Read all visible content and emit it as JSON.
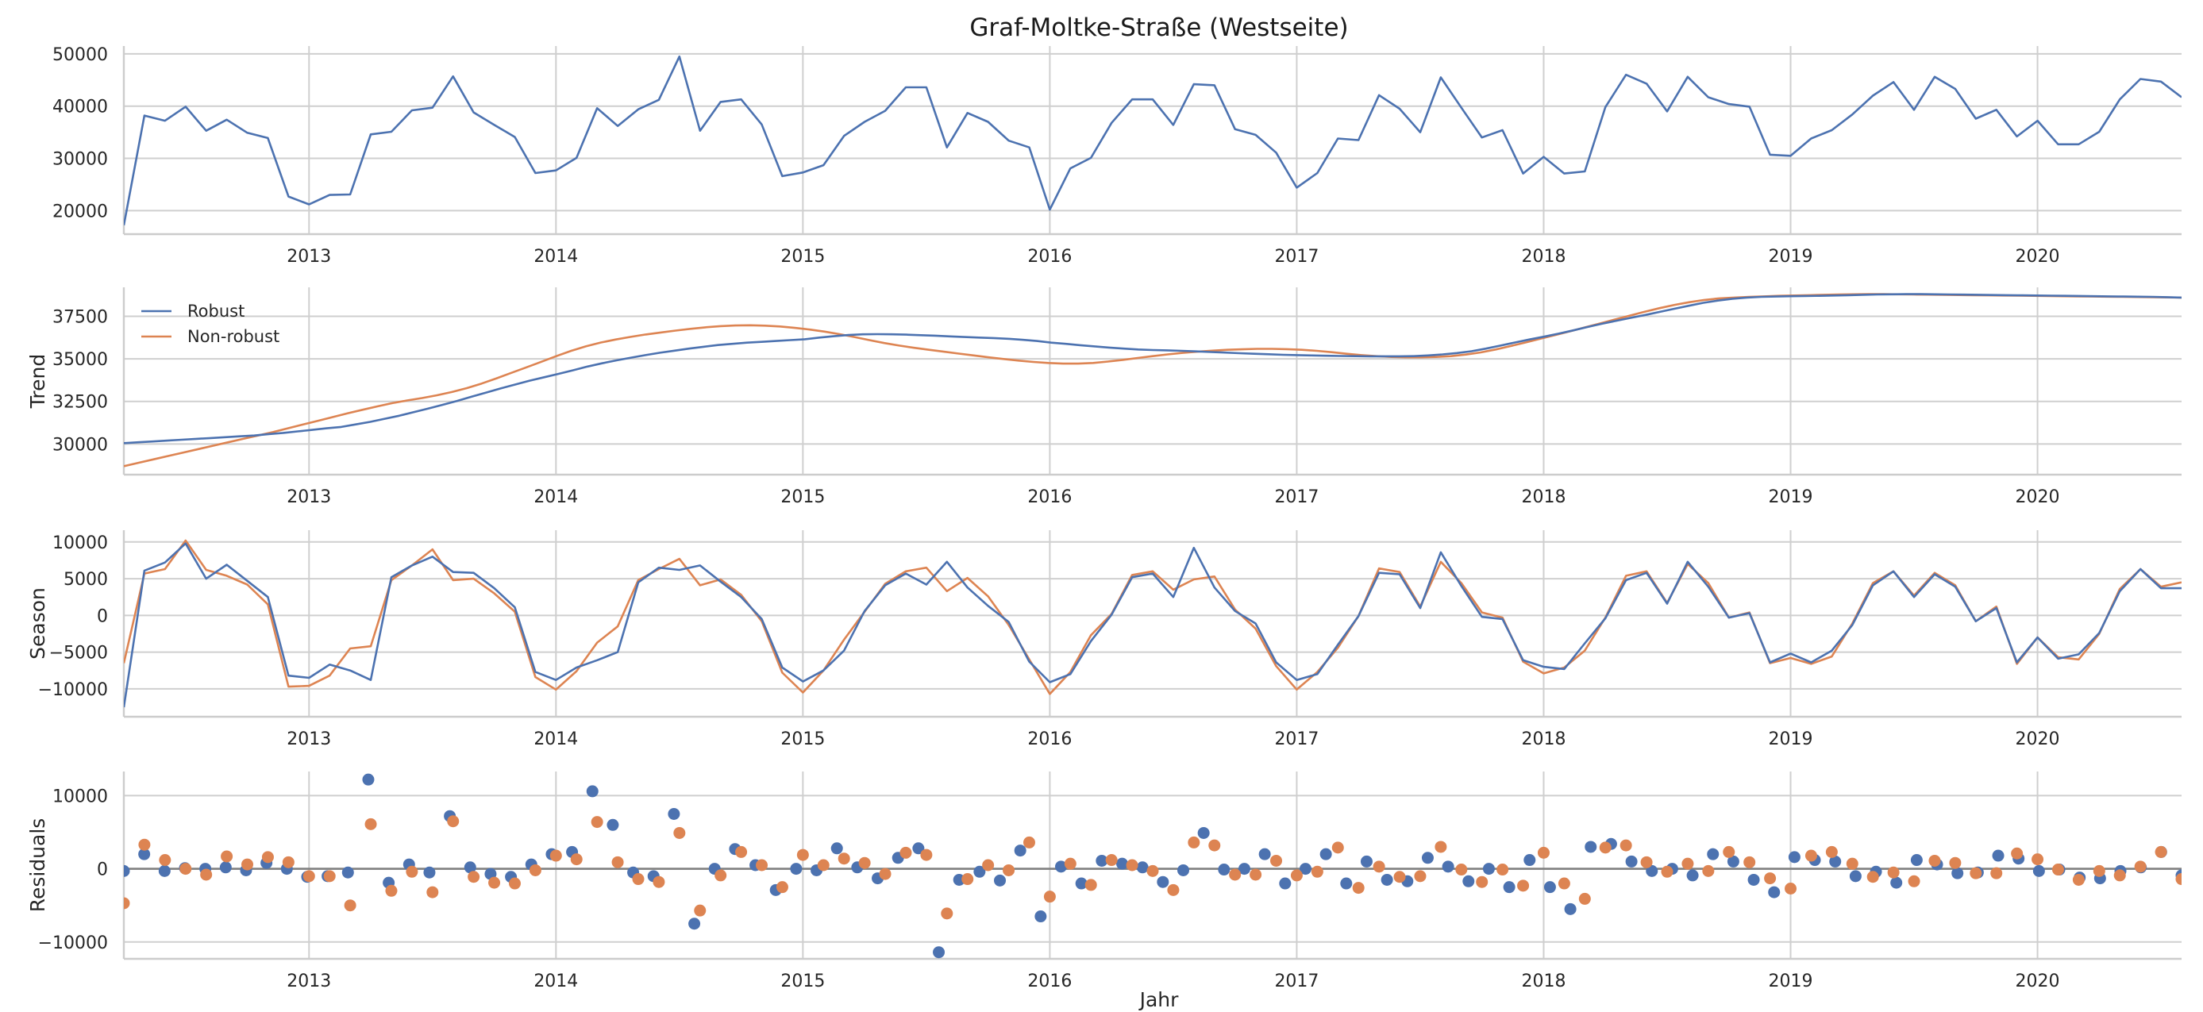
{
  "chart_data": {
    "type": "line",
    "title": "Graf-Moltke-Straße (Westseite)",
    "xlabel": "Jahr",
    "x_start": "2012-04",
    "x_range": [
      "2012-04",
      "2020-09"
    ],
    "year_ticks": [
      "2013",
      "2014",
      "2015",
      "2016",
      "2017",
      "2018",
      "2019",
      "2020"
    ],
    "colors": {
      "robust": "#4c72b0",
      "nonrobust": "#dd8452",
      "zero": "#808080"
    },
    "panels": [
      {
        "id": "observed",
        "type": "line",
        "ylabel": "",
        "ylim": [
          15500,
          51500
        ],
        "yticks": [
          20000,
          30000,
          40000,
          50000
        ],
        "ytick_labels": [
          "20000",
          "30000",
          "40000",
          "50000"
        ],
        "series": [
          {
            "color": "robust",
            "values": [
              17200,
              38200,
              37200,
              39900,
              35300,
              37400,
              34900,
              33900,
              22700,
              21200,
              23000,
              23100,
              34600,
              35100,
              39200,
              39700,
              45700,
              38800,
              36400,
              34100,
              27200,
              27700,
              30100,
              39600,
              36200,
              39400,
              41200,
              49500,
              35300,
              40800,
              41300,
              36500,
              26600,
              27300,
              28700,
              34300,
              37000,
              39100,
              43600,
              43600,
              32100,
              38700,
              37000,
              33400,
              32100,
              20200,
              28100,
              30100,
              36800,
              41300,
              41300,
              36400,
              44200,
              44000,
              35600,
              34500,
              31100,
              24400,
              27200,
              33800,
              33500,
              42100,
              39500,
              35000,
              45500,
              39700,
              34000,
              35400,
              27100,
              30300,
              27100,
              27500,
              39800,
              46000,
              44300,
              39000,
              45600,
              41700,
              40400,
              39900,
              30700,
              30500,
              33800,
              35400,
              38400,
              42000,
              44600,
              39300,
              45600,
              43300,
              37600,
              39300,
              34200,
              37200,
              32700,
              32700,
              35100,
              41300,
              45200,
              44700,
              41700
            ]
          }
        ]
      },
      {
        "id": "trend",
        "type": "line",
        "ylabel": "Trend",
        "ylim": [
          28200,
          39200
        ],
        "yticks": [
          30000,
          32500,
          35000,
          37500
        ],
        "ytick_labels": [
          "30000",
          "32500",
          "35000",
          "37500"
        ],
        "legend": {
          "position": "top-left",
          "entries": [
            {
              "name": "Robust",
              "color": "robust"
            },
            {
              "name": "Non-robust",
              "color": "nonrobust"
            }
          ]
        },
        "series": [
          {
            "name": "Robust",
            "color": "robust",
            "values": [
              30050,
              30100,
              30150,
              30200,
              30250,
              30300,
              30350,
              30400,
              30450,
              30500,
              30580,
              30650,
              30740,
              30830,
              30920,
              31000,
              31150,
              31300,
              31480,
              31660,
              31870,
              32080,
              32300,
              32530,
              32780,
              33020,
              33260,
              33490,
              33720,
              33920,
              34120,
              34330,
              34550,
              34740,
              34910,
              35070,
              35220,
              35360,
              35480,
              35600,
              35710,
              35810,
              35880,
              35950,
              36000,
              36050,
              36100,
              36150,
              36250,
              36330,
              36400,
              36440,
              36450,
              36440,
              36420,
              36390,
              36360,
              36320,
              36280,
              36250,
              36220,
              36180,
              36120,
              36050,
              35950,
              35880,
              35800,
              35730,
              35660,
              35600,
              35550,
              35520,
              35500,
              35470,
              35440,
              35400,
              35370,
              35330,
              35300,
              35270,
              35240,
              35220,
              35200,
              35180,
              35170,
              35160,
              35150,
              35150,
              35150,
              35160,
              35200,
              35260,
              35340,
              35450,
              35600,
              35780,
              35960,
              36140,
              36300,
              36480,
              36670,
              36870,
              37060,
              37240,
              37410,
              37580,
              37760,
              37940,
              38120,
              38290,
              38420,
              38530,
              38600,
              38640,
              38660,
              38680,
              38690,
              38700,
              38720,
              38740,
              38760,
              38780,
              38790,
              38800,
              38800,
              38790,
              38780,
              38770,
              38760,
              38750,
              38740,
              38730,
              38720,
              38710,
              38700,
              38690,
              38680,
              38670,
              38660,
              38650,
              38640,
              38620,
              38600
            ]
          },
          {
            "name": "Non-robust",
            "color": "nonrobust",
            "values": [
              28700,
              28900,
              29100,
              29300,
              29500,
              29700,
              29900,
              30100,
              30300,
              30500,
              30700,
              30920,
              31140,
              31360,
              31580,
              31800,
              32010,
              32210,
              32400,
              32560,
              32700,
              32860,
              33050,
              33280,
              33550,
              33860,
              34180,
              34500,
              34830,
              35160,
              35470,
              35740,
              35960,
              36140,
              36290,
              36430,
              36550,
              36660,
              36760,
              36850,
              36920,
              36960,
              36970,
              36950,
              36900,
              36820,
              36720,
              36600,
              36450,
              36280,
              36100,
              35930,
              35780,
              35650,
              35530,
              35420,
              35310,
              35200,
              35090,
              34990,
              34900,
              34820,
              34760,
              34720,
              34720,
              34760,
              34840,
              34940,
              35050,
              35160,
              35260,
              35350,
              35420,
              35480,
              35530,
              35560,
              35590,
              35590,
              35570,
              35530,
              35470,
              35390,
              35300,
              35220,
              35160,
              35110,
              35090,
              35090,
              35110,
              35160,
              35250,
              35380,
              35550,
              35750,
              35960,
              36180,
              36400,
              36620,
              36850,
              37080,
              37310,
              37540,
              37770,
              37980,
              38170,
              38330,
              38460,
              38550,
              38600,
              38640,
              38670,
              38700,
              38720,
              38740,
              38760,
              38780,
              38790,
              38800,
              38800,
              38790,
              38780,
              38770,
              38760,
              38750,
              38740,
              38730,
              38720,
              38710,
              38700,
              38690,
              38680,
              38670,
              38660,
              38650,
              38640,
              38630,
              38620,
              38610,
              38600
            ]
          }
        ]
      },
      {
        "id": "season",
        "type": "line",
        "ylabel": "Season",
        "ylim": [
          -13800,
          11600
        ],
        "yticks": [
          -10000,
          -5000,
          0,
          5000,
          10000
        ],
        "ytick_labels": [
          "−10000",
          "−5000",
          "0",
          "5000",
          "10000"
        ],
        "series": [
          {
            "name": "Robust",
            "color": "robust",
            "values": [
              -12500,
              6100,
              7200,
              9800,
              5000,
              6900,
              4700,
              2500,
              -8200,
              -8500,
              -6700,
              -7500,
              -8800,
              5200,
              6800,
              8000,
              5900,
              5800,
              3700,
              1100,
              -7700,
              -8800,
              -7100,
              -6100,
              -5000,
              4500,
              6500,
              6200,
              6800,
              4600,
              2500,
              -500,
              -7100,
              -9000,
              -7500,
              -4800,
              600,
              4100,
              5700,
              4200,
              7300,
              3800,
              1300,
              -900,
              -6300,
              -9100,
              -8000,
              -3500,
              100,
              5200,
              5700,
              2500,
              9200,
              3800,
              600,
              -1100,
              -6400,
              -8800,
              -8000,
              -4000,
              -100,
              5800,
              5600,
              1000,
              8600,
              4000,
              -200,
              -500,
              -6100,
              -7000,
              -7300,
              -3800,
              -400,
              4800,
              5800,
              1600,
              7300,
              3900,
              -300,
              300,
              -6400,
              -5200,
              -6400,
              -4800,
              -1300,
              4100,
              6000,
              2500,
              5600,
              3900,
              -800,
              1000,
              -6400,
              -3000,
              -5900,
              -5300,
              -2400,
              3300,
              6300,
              3700,
              3700
            ]
          },
          {
            "name": "Non-robust",
            "color": "nonrobust",
            "values": [
              -6500,
              5700,
              6300,
              10200,
              6200,
              5400,
              4200,
              1500,
              -9700,
              -9600,
              -8200,
              -4500,
              -4200,
              4800,
              6800,
              9000,
              4800,
              5000,
              3000,
              500,
              -8400,
              -10100,
              -7600,
              -3700,
              -1500,
              4800,
              6300,
              7700,
              4100,
              4900,
              2800,
              -800,
              -7800,
              -10500,
              -7500,
              -3300,
              500,
              4300,
              6000,
              6500,
              3300,
              5100,
              2600,
              -1300,
              -6000,
              -10700,
              -7700,
              -2700,
              200,
              5500,
              6000,
              3500,
              4900,
              5300,
              800,
              -1800,
              -6900,
              -10100,
              -7700,
              -4400,
              -100,
              6400,
              5900,
              1200,
              7300,
              4400,
              400,
              -300,
              -6300,
              -7900,
              -7100,
              -4800,
              -300,
              5400,
              6000,
              1700,
              7000,
              4400,
              -300,
              400,
              -6500,
              -5800,
              -6600,
              -5600,
              -1100,
              4400,
              6000,
              2700,
              5800,
              4100,
              -800,
              1200,
              -6600,
              -3000,
              -5700,
              -6000,
              -2500,
              3600,
              6300,
              3900,
              4500
            ]
          }
        ]
      },
      {
        "id": "residuals",
        "type": "scatter",
        "ylabel": "Residuals",
        "ylim": [
          -12300,
          13300
        ],
        "yticks": [
          -10000,
          0,
          10000
        ],
        "ytick_labels": [
          "−10000",
          "0",
          "10000"
        ],
        "zero_line": true,
        "series": [
          {
            "name": "Robust",
            "color": "robust",
            "values": [
              -300,
              2000,
              -300,
              100,
              0,
              200,
              -200,
              800,
              0,
              -1100,
              -1000,
              -500,
              12200,
              -1900,
              600,
              -500,
              7200,
              200,
              -700,
              -1100,
              600,
              2000,
              2300,
              10600,
              6000,
              -500,
              -1000,
              7500,
              -7500,
              0,
              2700,
              500,
              -2900,
              0,
              -200,
              2800,
              200,
              -1300,
              1500,
              2800,
              -11400,
              -1500,
              -400,
              -1600,
              2500,
              -6500,
              300,
              -2000,
              1100,
              700,
              200,
              -1800,
              -200,
              4900,
              -100,
              0,
              2000,
              -2000,
              0,
              2000,
              -2000,
              1000,
              -1500,
              -1700,
              1500,
              300,
              -1700,
              0,
              -2500,
              1200,
              -2500,
              -5500,
              3000,
              3400,
              1000,
              -300,
              0,
              -900,
              2000,
              1000,
              -1500,
              -3200,
              1600,
              1200,
              1000,
              -1000,
              -400,
              -1900,
              1200,
              600,
              -600,
              -500,
              1800,
              1400,
              -300,
              -100,
              -1200,
              -1300,
              -300,
              200,
              2300,
              -900
            ]
          },
          {
            "name": "Non-robust",
            "color": "nonrobust",
            "values": [
              -4700,
              3300,
              1200,
              0,
              -800,
              1700,
              600,
              1600,
              900,
              -1000,
              -1000,
              -5000,
              6100,
              -3000,
              -400,
              -3200,
              6500,
              -1100,
              -1900,
              -2000,
              -200,
              1800,
              1300,
              6400,
              900,
              -1400,
              -1800,
              4900,
              -5700,
              -900,
              2300,
              500,
              -2500,
              1900,
              500,
              1400,
              800,
              -700,
              2200,
              1900,
              -6100,
              -1400,
              500,
              -200,
              3600,
              -3800,
              700,
              -2200,
              1200,
              500,
              -300,
              -2900,
              3600,
              3200,
              -800,
              -800,
              1100,
              -900,
              -400,
              2900,
              -2600,
              300,
              -1100,
              -1000,
              3000,
              -100,
              -1800,
              -100,
              -2300,
              2200,
              -2000,
              -4100,
              2900,
              3200,
              900,
              -400,
              700,
              -300,
              2300,
              900,
              -1300,
              -2700,
              1800,
              2300,
              700,
              -1100,
              -500,
              -1700,
              1100,
              800,
              -600,
              -600,
              2100,
              1300,
              -100,
              -1500,
              -300,
              -900,
              300,
              2300,
              -1400
            ]
          }
        ]
      }
    ]
  }
}
